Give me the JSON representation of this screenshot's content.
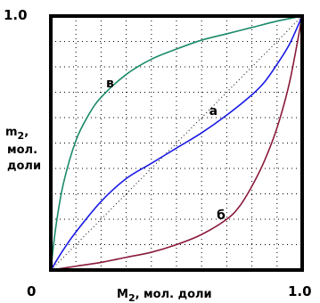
{
  "chart_data": {
    "type": "line",
    "title": "",
    "xlabel_main": "M",
    "xlabel_sub": "2",
    "xlabel_rest": ", мол. доли",
    "ylabel_main": "m",
    "ylabel_sub": "2",
    "ylabel_line1_rest": ",",
    "ylabel_line2": "мол.",
    "ylabel_line3": "доли",
    "xlim": [
      0,
      1
    ],
    "ylim": [
      0,
      1
    ],
    "x_tick_labels": [
      "0",
      "1.0"
    ],
    "y_tick_labels": [
      "1.0"
    ],
    "grid": true,
    "series": [
      {
        "name": "в",
        "color": "#1a8a6a",
        "x": [
          0.0,
          0.02,
          0.05,
          0.1,
          0.15,
          0.2,
          0.3,
          0.4,
          0.5,
          0.6,
          0.7,
          0.8,
          0.9,
          1.0
        ],
        "y": [
          0.0,
          0.17,
          0.34,
          0.51,
          0.61,
          0.68,
          0.77,
          0.83,
          0.87,
          0.905,
          0.93,
          0.955,
          0.98,
          1.0
        ]
      },
      {
        "name": "а",
        "color": "#1a1ae6",
        "x": [
          0.0,
          0.05,
          0.1,
          0.2,
          0.3,
          0.4,
          0.5,
          0.6,
          0.7,
          0.8,
          0.85,
          0.9,
          0.95,
          1.0
        ],
        "y": [
          0.0,
          0.08,
          0.15,
          0.27,
          0.36,
          0.42,
          0.48,
          0.54,
          0.61,
          0.69,
          0.74,
          0.81,
          0.89,
          1.0
        ]
      },
      {
        "name": "б",
        "color": "#8a1a3a",
        "x": [
          0.0,
          0.1,
          0.2,
          0.3,
          0.4,
          0.5,
          0.6,
          0.7,
          0.75,
          0.8,
          0.85,
          0.9,
          0.95,
          1.0
        ],
        "y": [
          0.0,
          0.015,
          0.03,
          0.05,
          0.07,
          0.1,
          0.14,
          0.2,
          0.25,
          0.33,
          0.43,
          0.56,
          0.74,
          1.0
        ]
      }
    ],
    "label_positions_data": [
      {
        "text": "в",
        "x": 0.22,
        "y": 0.72
      },
      {
        "text": "а",
        "x": 0.63,
        "y": 0.61
      },
      {
        "text": "б",
        "x": 0.66,
        "y": 0.2
      }
    ]
  }
}
